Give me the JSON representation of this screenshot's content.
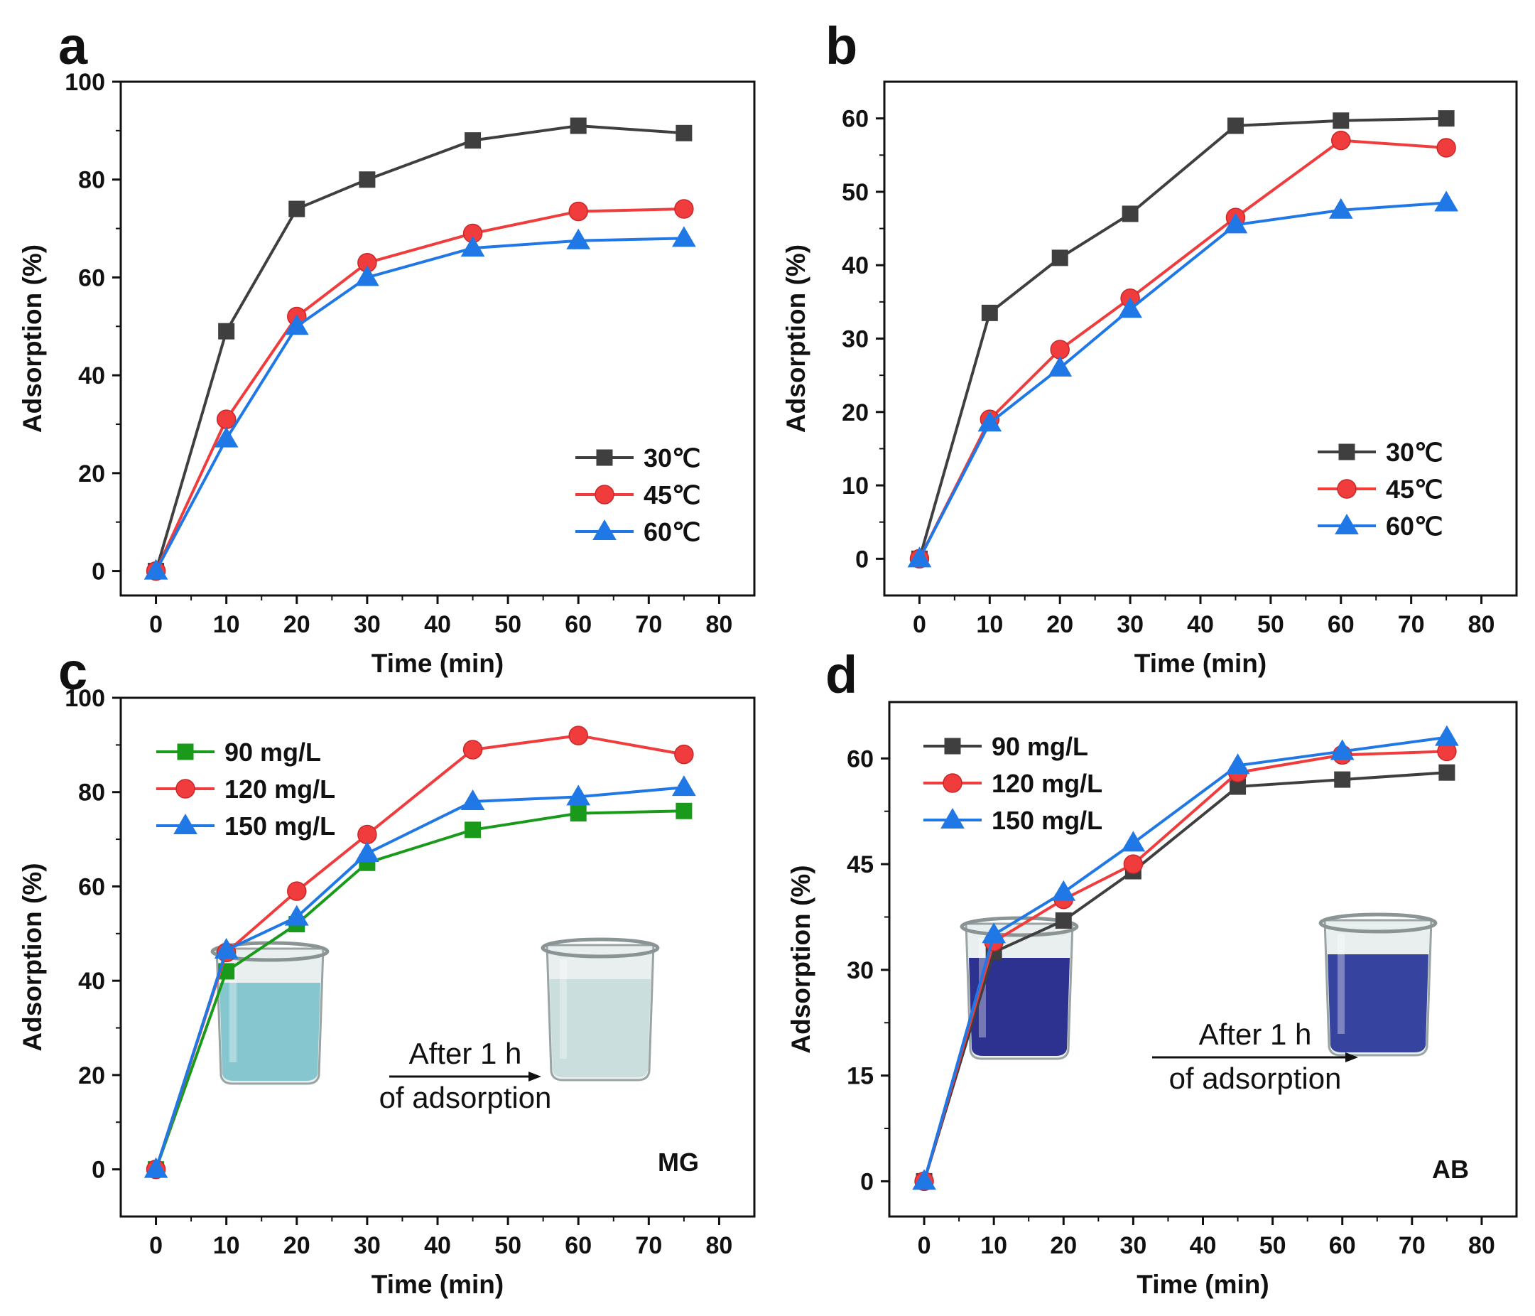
{
  "chart_data": [
    {
      "panel": "a",
      "type": "line",
      "xlabel": "Time (min)",
      "ylabel": "Adsorption (%)",
      "xlim": [
        -5,
        85
      ],
      "ylim": [
        -5,
        100
      ],
      "xticks": [
        0,
        10,
        20,
        30,
        40,
        50,
        60,
        70,
        80
      ],
      "yticks": [
        0,
        20,
        40,
        60,
        80,
        100
      ],
      "x": [
        0,
        10,
        20,
        30,
        45,
        60,
        75
      ],
      "legend_position": "bottom-right",
      "grid": false,
      "series": [
        {
          "name": "30℃",
          "marker": "square",
          "color": "#3f3f3f",
          "values": [
            0,
            49,
            74,
            80,
            88,
            91,
            89.5
          ]
        },
        {
          "name": "45℃",
          "marker": "circle",
          "color": "#f03c3c",
          "values": [
            0,
            31,
            52,
            63,
            69,
            73.5,
            74
          ]
        },
        {
          "name": "60℃",
          "marker": "triangle",
          "color": "#1f78e6",
          "values": [
            0,
            27,
            50,
            60,
            66,
            67.5,
            68
          ]
        }
      ]
    },
    {
      "panel": "b",
      "type": "line",
      "xlabel": "Time (min)",
      "ylabel": "Adsorption (%)",
      "xlim": [
        -5,
        85
      ],
      "ylim": [
        -5,
        65
      ],
      "xticks": [
        0,
        10,
        20,
        30,
        40,
        50,
        60,
        70,
        80
      ],
      "yticks": [
        0,
        10,
        20,
        30,
        40,
        50,
        60
      ],
      "x": [
        0,
        10,
        20,
        30,
        45,
        60,
        75
      ],
      "legend_position": "bottom-right",
      "grid": false,
      "series": [
        {
          "name": "30℃",
          "marker": "square",
          "color": "#3f3f3f",
          "values": [
            0,
            33.5,
            41,
            47,
            59,
            59.7,
            60
          ]
        },
        {
          "name": "45℃",
          "marker": "circle",
          "color": "#f03c3c",
          "values": [
            0,
            19,
            28.5,
            35.5,
            46.5,
            57,
            56
          ]
        },
        {
          "name": "60℃",
          "marker": "triangle",
          "color": "#1f78e6",
          "values": [
            0,
            18.5,
            26,
            34,
            45.5,
            47.5,
            48.5
          ]
        }
      ]
    },
    {
      "panel": "c",
      "type": "line",
      "xlabel": "Time (min)",
      "ylabel": "Adsorption (%)",
      "xlim": [
        -5,
        85
      ],
      "ylim": [
        -10,
        100
      ],
      "xticks": [
        0,
        10,
        20,
        30,
        40,
        50,
        60,
        70,
        80
      ],
      "yticks": [
        0,
        20,
        40,
        60,
        80,
        100
      ],
      "x": [
        0,
        10,
        20,
        30,
        45,
        60,
        75
      ],
      "legend_position": "top-left",
      "grid": false,
      "dye_label": "MG",
      "annotation": [
        "After 1 h",
        "of adsorption"
      ],
      "series": [
        {
          "name": "90 mg/L",
          "marker": "square",
          "color": "#1a9a1a",
          "values": [
            0,
            42,
            52,
            65,
            72,
            75.5,
            76
          ]
        },
        {
          "name": "120 mg/L",
          "marker": "circle",
          "color": "#f03c3c",
          "values": [
            0,
            46,
            59,
            71,
            89,
            92,
            88
          ]
        },
        {
          "name": "150 mg/L",
          "marker": "triangle",
          "color": "#1f78e6",
          "values": [
            0,
            46.5,
            53.5,
            67,
            78,
            79,
            81
          ]
        }
      ]
    },
    {
      "panel": "d",
      "type": "line",
      "xlabel": "Time (min)",
      "ylabel": "Adsorption (%)",
      "xlim": [
        -5,
        85
      ],
      "ylim": [
        -5,
        68
      ],
      "xticks": [
        0,
        10,
        20,
        30,
        40,
        50,
        60,
        70,
        80
      ],
      "yticks": [
        0,
        15,
        30,
        45,
        60
      ],
      "x": [
        0,
        10,
        20,
        30,
        45,
        60,
        75
      ],
      "legend_position": "top-left",
      "grid": false,
      "dye_label": "AB",
      "annotation": [
        "After 1 h",
        "of adsorption"
      ],
      "series": [
        {
          "name": "90 mg/L",
          "marker": "square",
          "color": "#3f3f3f",
          "values": [
            0,
            32.5,
            37,
            44,
            56,
            57,
            58
          ]
        },
        {
          "name": "120 mg/L",
          "marker": "circle",
          "color": "#f03c3c",
          "values": [
            0,
            34,
            40,
            45,
            58,
            60.5,
            61
          ]
        },
        {
          "name": "150 mg/L",
          "marker": "triangle",
          "color": "#1f78e6",
          "values": [
            0,
            35,
            41,
            48,
            59,
            61,
            63
          ]
        }
      ]
    }
  ],
  "beaker_colors": {
    "mg_before": "#7fc3cc",
    "mg_after": "#c8dcdc",
    "ab_before": "#23268a",
    "ab_after": "#2c3a9a"
  }
}
